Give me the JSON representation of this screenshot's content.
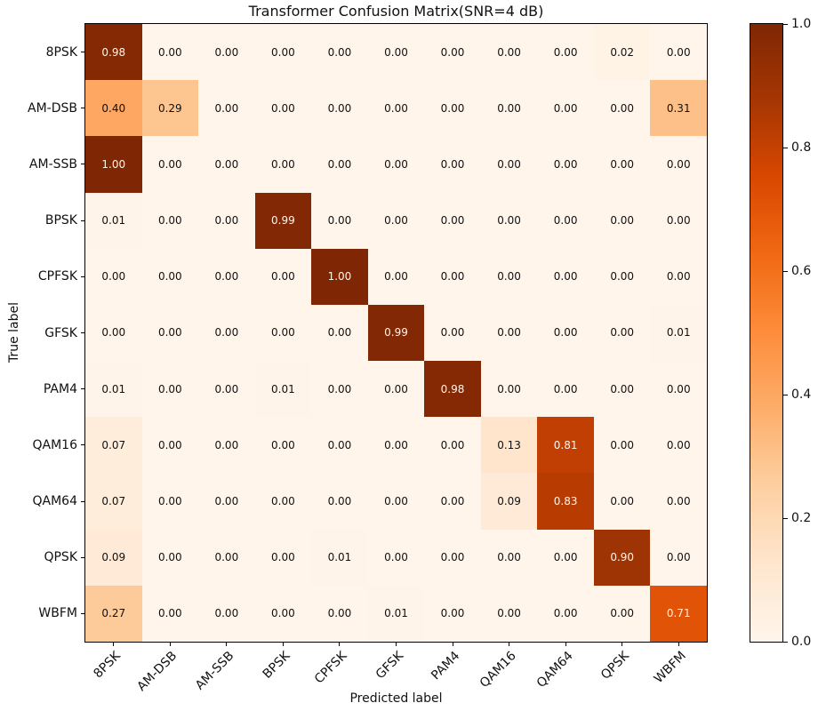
{
  "chart_data": {
    "type": "heatmap",
    "title": "Transformer Confusion Matrix(SNR=4 dB)",
    "xlabel": "Predicted label",
    "ylabel": "True label",
    "categories": [
      "8PSK",
      "AM-DSB",
      "AM-SSB",
      "BPSK",
      "CPFSK",
      "GFSK",
      "PAM4",
      "QAM16",
      "QAM64",
      "QPSK",
      "WBFM"
    ],
    "matrix": [
      [
        0.98,
        0.0,
        0.0,
        0.0,
        0.0,
        0.0,
        0.0,
        0.0,
        0.0,
        0.02,
        0.0
      ],
      [
        0.4,
        0.29,
        0.0,
        0.0,
        0.0,
        0.0,
        0.0,
        0.0,
        0.0,
        0.0,
        0.31
      ],
      [
        1.0,
        0.0,
        0.0,
        0.0,
        0.0,
        0.0,
        0.0,
        0.0,
        0.0,
        0.0,
        0.0
      ],
      [
        0.01,
        0.0,
        0.0,
        0.99,
        0.0,
        0.0,
        0.0,
        0.0,
        0.0,
        0.0,
        0.0
      ],
      [
        0.0,
        0.0,
        0.0,
        0.0,
        1.0,
        0.0,
        0.0,
        0.0,
        0.0,
        0.0,
        0.0
      ],
      [
        0.0,
        0.0,
        0.0,
        0.0,
        0.0,
        0.99,
        0.0,
        0.0,
        0.0,
        0.0,
        0.01
      ],
      [
        0.01,
        0.0,
        0.0,
        0.01,
        0.0,
        0.0,
        0.98,
        0.0,
        0.0,
        0.0,
        0.0
      ],
      [
        0.07,
        0.0,
        0.0,
        0.0,
        0.0,
        0.0,
        0.0,
        0.13,
        0.81,
        0.0,
        0.0
      ],
      [
        0.07,
        0.0,
        0.0,
        0.0,
        0.0,
        0.0,
        0.0,
        0.09,
        0.83,
        0.0,
        0.0
      ],
      [
        0.09,
        0.0,
        0.0,
        0.0,
        0.01,
        0.0,
        0.0,
        0.0,
        0.0,
        0.9,
        0.0
      ],
      [
        0.27,
        0.0,
        0.0,
        0.0,
        0.0,
        0.01,
        0.0,
        0.0,
        0.0,
        0.0,
        0.71
      ]
    ],
    "decimals": 2,
    "grid": false,
    "colormap": "Oranges",
    "colormap_anchors": [
      "#fff5eb",
      "#fee6ce",
      "#fdd0a2",
      "#fdae6b",
      "#fd8d3c",
      "#f16913",
      "#d94801",
      "#a63603",
      "#7f2704"
    ],
    "annotation_threshold": 0.5,
    "annotation_colors": {
      "light": "#fff5eb",
      "dark": "#111111"
    },
    "colorbar": {
      "position": "right",
      "min": 0.0,
      "max": 1.0,
      "ticks": [
        "0.0",
        "0.2",
        "0.4",
        "0.6",
        "0.8",
        "1.0"
      ]
    }
  }
}
